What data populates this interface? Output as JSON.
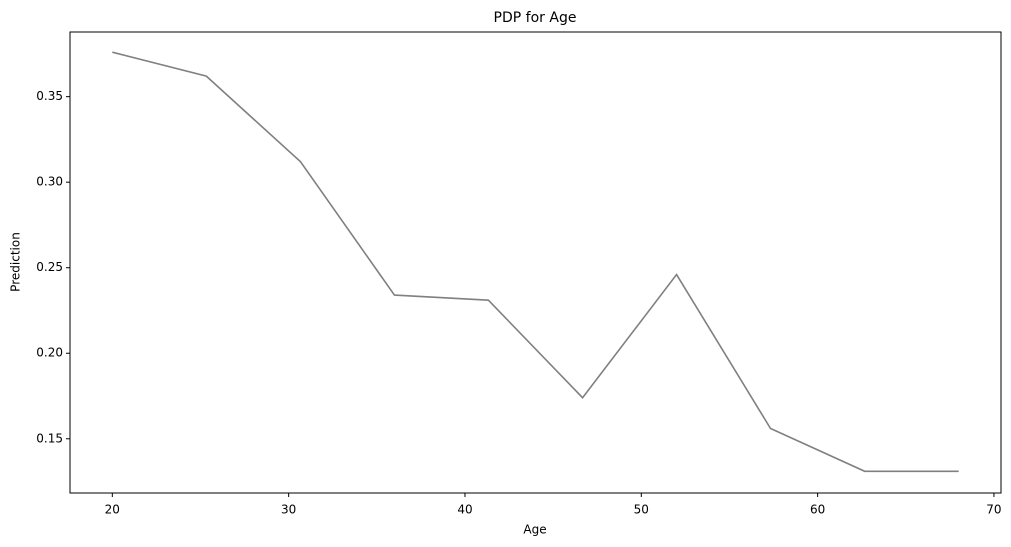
{
  "chart_data": {
    "type": "line",
    "title": "PDP for Age",
    "x_label": "Age",
    "y_label": "Prediction",
    "x": [
      20,
      25.33,
      30.67,
      36,
      41.33,
      46.67,
      52,
      57.33,
      62.67,
      68
    ],
    "values": [
      0.376,
      0.362,
      0.312,
      0.234,
      0.231,
      0.174,
      0.246,
      0.156,
      0.131,
      0.131
    ],
    "color": "#808080",
    "xlim": [
      17.6,
      70.4
    ],
    "xticks": [
      20,
      30,
      40,
      50,
      60,
      70
    ],
    "ylim": [
      0.1183,
      0.3878
    ],
    "yticks": [
      0.15,
      {
        "value": 0.2,
        "label": "0.20"
      },
      0.25,
      {
        "value": 0.3,
        "label": "0.30"
      },
      0.35
    ],
    "grid": false
  }
}
